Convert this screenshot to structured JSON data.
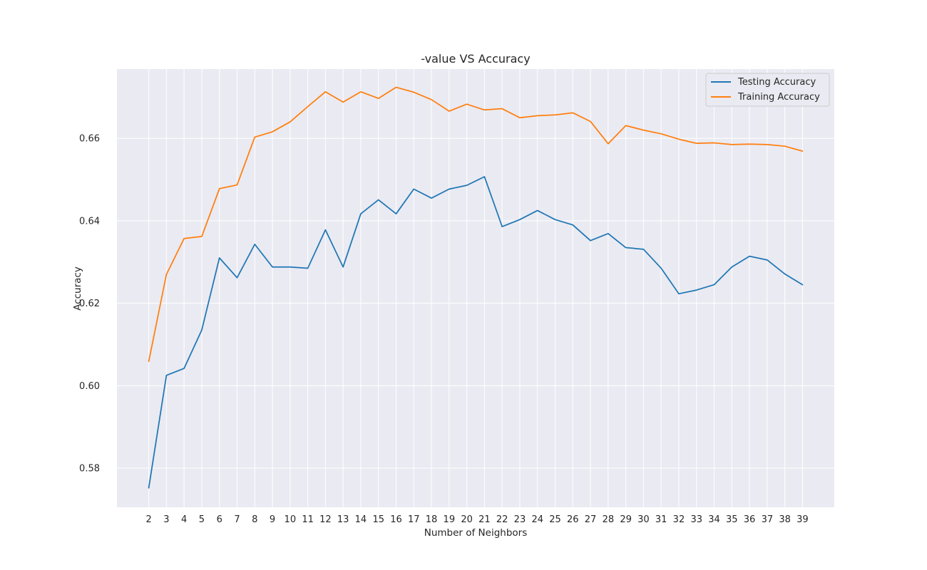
{
  "chart_data": {
    "type": "line",
    "title": "-value VS Accuracy",
    "xlabel": "Number of Neighbors",
    "ylabel": "Accuracy",
    "x": [
      2,
      3,
      4,
      5,
      6,
      7,
      8,
      9,
      10,
      11,
      12,
      13,
      14,
      15,
      16,
      17,
      18,
      19,
      20,
      21,
      22,
      23,
      24,
      25,
      26,
      27,
      28,
      29,
      30,
      31,
      32,
      33,
      34,
      35,
      36,
      37,
      38,
      39
    ],
    "xlim": [
      0.2,
      40.8
    ],
    "ylim": [
      0.5705,
      0.6768
    ],
    "yticks": [
      0.58,
      0.6,
      0.62,
      0.64,
      0.66
    ],
    "ytick_labels": [
      "0.58",
      "0.60",
      "0.62",
      "0.64",
      "0.66"
    ],
    "grid": true,
    "legend_position": "top-right",
    "series": [
      {
        "name": "Testing Accuracy",
        "color": "#1f77b4",
        "values": [
          0.5752,
          0.6025,
          0.6042,
          0.6135,
          0.631,
          0.6262,
          0.6343,
          0.6288,
          0.6288,
          0.6285,
          0.6378,
          0.6288,
          0.6417,
          0.6451,
          0.6417,
          0.6477,
          0.6455,
          0.6477,
          0.6486,
          0.6507,
          0.6386,
          0.6403,
          0.6425,
          0.6403,
          0.639,
          0.6352,
          0.6369,
          0.6335,
          0.6331,
          0.6285,
          0.6223,
          0.6232,
          0.6245,
          0.6288,
          0.6314,
          0.6305,
          0.6271,
          0.6245
        ]
      },
      {
        "name": "Training Accuracy",
        "color": "#ff7f0e",
        "values": [
          0.6059,
          0.627,
          0.6357,
          0.6362,
          0.6478,
          0.6487,
          0.6603,
          0.6616,
          0.664,
          0.6677,
          0.6713,
          0.6688,
          0.6713,
          0.6697,
          0.6724,
          0.6712,
          0.6694,
          0.6666,
          0.6683,
          0.6669,
          0.6672,
          0.665,
          0.6655,
          0.6657,
          0.6662,
          0.6641,
          0.6587,
          0.6631,
          0.662,
          0.6611,
          0.6598,
          0.6588,
          0.6589,
          0.6585,
          0.6586,
          0.6585,
          0.6581,
          0.6569
        ]
      }
    ]
  }
}
